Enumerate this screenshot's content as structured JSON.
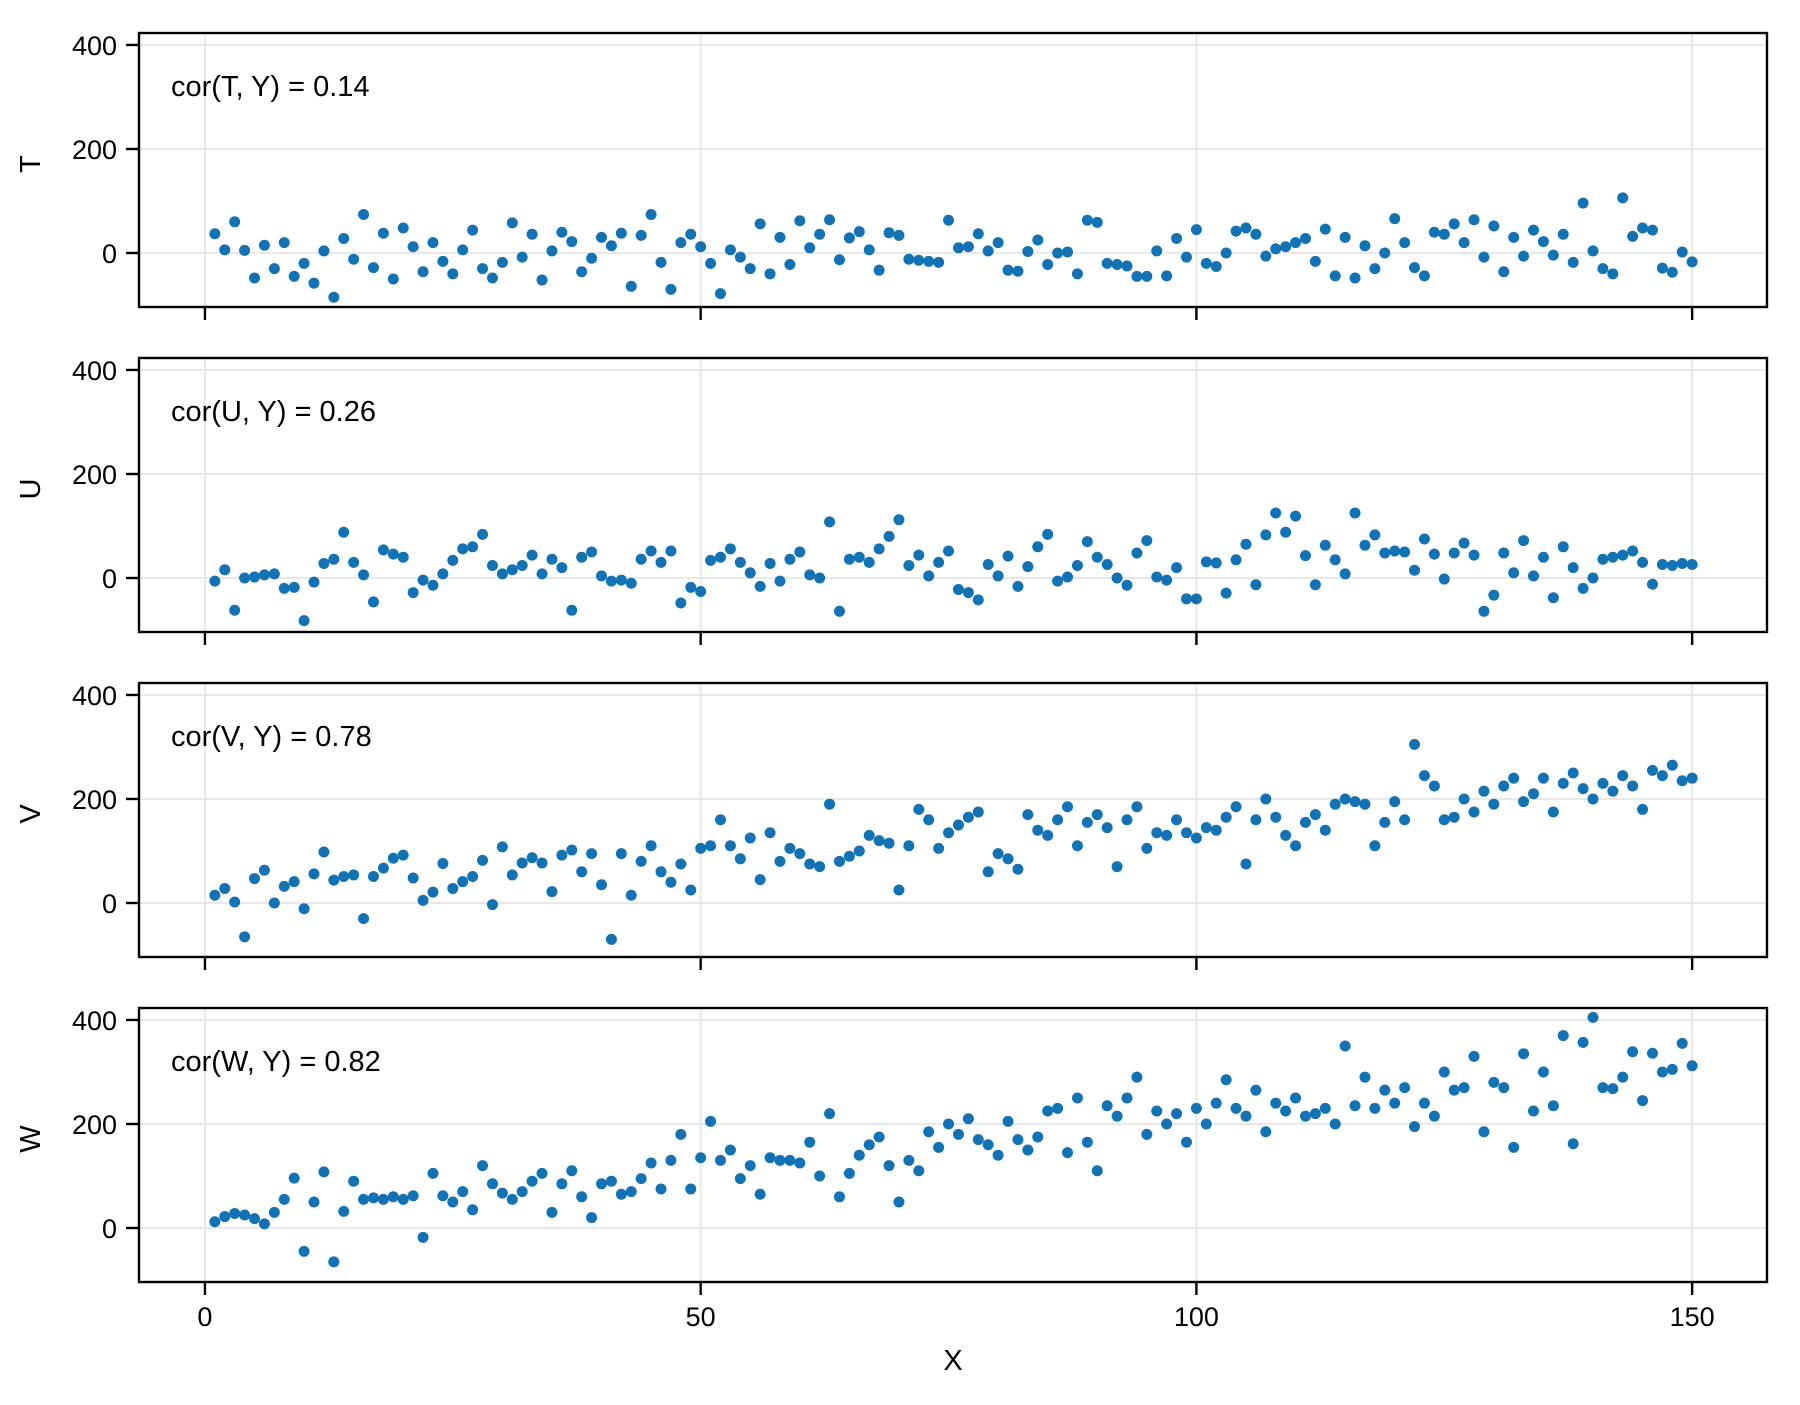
{
  "style": {
    "background": "#ffffff",
    "dot_color": "#1272b4",
    "grid_color": "#e8e8e8",
    "axis_color": "#000000",
    "dot_radius": 5.5
  },
  "chart_data": {
    "type": "scatter",
    "title": "",
    "xlabel": "X",
    "layout": "4 stacked panels, shared x-axis, grid on, no legend",
    "x_ticks": [
      0,
      50,
      100,
      150
    ],
    "y_ticks": [
      0,
      200,
      400
    ],
    "xlim": [
      -6.65,
      157.55
    ],
    "ylim": [
      -103.8,
      423
    ],
    "x": [
      1,
      2,
      3,
      4,
      5,
      6,
      7,
      8,
      9,
      10,
      11,
      12,
      13,
      14,
      15,
      16,
      17,
      18,
      19,
      20,
      21,
      22,
      23,
      24,
      25,
      26,
      27,
      28,
      29,
      30,
      31,
      32,
      33,
      34,
      35,
      36,
      37,
      38,
      39,
      40,
      41,
      42,
      43,
      44,
      45,
      46,
      47,
      48,
      49,
      50,
      51,
      52,
      53,
      54,
      55,
      56,
      57,
      58,
      59,
      60,
      61,
      62,
      63,
      64,
      65,
      66,
      67,
      68,
      69,
      70,
      71,
      72,
      73,
      74,
      75,
      76,
      77,
      78,
      79,
      80,
      81,
      82,
      83,
      84,
      85,
      86,
      87,
      88,
      89,
      90,
      91,
      92,
      93,
      94,
      95,
      96,
      97,
      98,
      99,
      100,
      101,
      102,
      103,
      104,
      105,
      106,
      107,
      108,
      109,
      110,
      111,
      112,
      113,
      114,
      115,
      116,
      117,
      118,
      119,
      120,
      121,
      122,
      123,
      124,
      125,
      126,
      127,
      128,
      129,
      130,
      131,
      132,
      133,
      134,
      135,
      136,
      137,
      138,
      139,
      140,
      141,
      142,
      143,
      144,
      145,
      146,
      147,
      148,
      149,
      150
    ],
    "panels": [
      {
        "ylabel": "T",
        "annotation": "cor(T, Y) = 0.14",
        "correlation": 0.14,
        "y": [
          37,
          6,
          60,
          5,
          -48,
          15,
          -30,
          20,
          -45,
          -20,
          -58,
          4,
          -85,
          28,
          -12,
          74,
          -28,
          38,
          -50,
          48,
          12,
          -36,
          20,
          -16,
          -40,
          6,
          44,
          -30,
          -48,
          -18,
          58,
          -8,
          36,
          -52,
          4,
          40,
          22,
          -36,
          -10,
          30,
          14,
          38,
          -64,
          34,
          74,
          -18,
          -70,
          20,
          36,
          12,
          -20,
          -78,
          6,
          -8,
          -30,
          56,
          -40,
          30,
          -22,
          62,
          10,
          36,
          64,
          -13,
          29,
          41,
          6,
          -33,
          39,
          34,
          -12,
          -14,
          -16,
          -18,
          63,
          10,
          12,
          37,
          4,
          20,
          -33,
          -35,
          3,
          25,
          -22,
          0,
          2,
          -40,
          63,
          59,
          -20,
          -22,
          -25,
          -45,
          -45,
          4,
          -44,
          28,
          -8,
          45,
          -20,
          -26,
          0,
          42,
          48,
          36,
          -6,
          8,
          12,
          20,
          28,
          -16,
          46,
          -44,
          30,
          -48,
          14,
          -30,
          0,
          66,
          20,
          -28,
          -44,
          40,
          36,
          56,
          20,
          64,
          -8,
          52,
          -36,
          30,
          -6,
          44,
          22,
          -4,
          36,
          -18,
          96,
          4,
          -30,
          -40,
          106,
          32,
          48,
          44,
          -29,
          -37,
          2,
          -17
        ]
      },
      {
        "ylabel": "U",
        "annotation": "cor(U, Y) = 0.26",
        "correlation": 0.26,
        "y": [
          -6,
          16,
          -62,
          0,
          2,
          6,
          8,
          -20,
          -18,
          -82,
          -8,
          28,
          36,
          88,
          30,
          6,
          -46,
          54,
          46,
          40,
          -28,
          -4,
          -14,
          8,
          34,
          56,
          60,
          84,
          24,
          8,
          16,
          24,
          44,
          8,
          36,
          20,
          -62,
          40,
          50,
          4,
          -6,
          -4,
          -10,
          36,
          52,
          30,
          52,
          -48,
          -18,
          -26,
          34,
          40,
          56,
          30,
          10,
          -16,
          28,
          -6,
          36,
          50,
          6,
          0,
          108,
          -64,
          36,
          40,
          30,
          56,
          80,
          112,
          24,
          44,
          4,
          30,
          52,
          -22,
          -28,
          -42,
          26,
          4,
          42,
          -16,
          22,
          60,
          84,
          -6,
          2,
          24,
          70,
          40,
          26,
          0,
          -14,
          48,
          72,
          2,
          -4,
          20,
          -40,
          -40,
          31,
          29,
          -29,
          35,
          65,
          -13,
          83,
          125,
          88,
          119,
          43,
          -13,
          63,
          35,
          8,
          125,
          63,
          83,
          48,
          52,
          50,
          15,
          75,
          46,
          -2,
          48,
          67,
          44,
          -64,
          -33,
          48,
          10,
          72,
          4,
          40,
          -38,
          60,
          20,
          -20,
          0,
          36,
          40,
          44,
          52,
          30,
          -12,
          26,
          24,
          28,
          26
        ]
      },
      {
        "ylabel": "V",
        "annotation": "cor(V, Y) = 0.78",
        "correlation": 0.78,
        "y": [
          15,
          28,
          2,
          -65,
          47,
          63,
          0,
          32,
          41,
          -11,
          56,
          98,
          44,
          51,
          54,
          -30,
          51,
          67,
          86,
          92,
          48,
          5,
          21,
          76,
          28,
          41,
          51,
          82,
          -3,
          108,
          54,
          77,
          87,
          77,
          22,
          92,
          102,
          60,
          95,
          35,
          -70,
          95,
          15,
          80,
          110,
          60,
          40,
          75,
          25,
          105,
          110,
          160,
          110,
          85,
          125,
          45,
          135,
          80,
          105,
          95,
          75,
          70,
          190,
          80,
          90,
          100,
          130,
          120,
          115,
          25,
          110,
          180,
          160,
          105,
          135,
          150,
          165,
          175,
          60,
          95,
          85,
          65,
          170,
          140,
          130,
          160,
          185,
          110,
          155,
          170,
          145,
          70,
          160,
          185,
          105,
          135,
          130,
          160,
          135,
          125,
          145,
          140,
          165,
          185,
          75,
          160,
          200,
          165,
          130,
          110,
          155,
          170,
          140,
          190,
          200,
          195,
          190,
          110,
          155,
          195,
          160,
          305,
          245,
          225,
          160,
          165,
          200,
          175,
          215,
          190,
          225,
          240,
          195,
          210,
          240,
          175,
          230,
          250,
          220,
          200,
          230,
          215,
          245,
          225,
          180,
          255,
          245,
          265,
          235,
          240
        ]
      },
      {
        "ylabel": "W",
        "annotation": "cor(W, Y) = 0.82",
        "correlation": 0.82,
        "y": [
          12,
          22,
          28,
          25,
          18,
          8,
          30,
          55,
          96,
          -45,
          50,
          108,
          -65,
          32,
          90,
          55,
          58,
          55,
          60,
          55,
          62,
          -18,
          105,
          62,
          50,
          70,
          35,
          120,
          85,
          67,
          55,
          70,
          90,
          105,
          30,
          85,
          110,
          60,
          20,
          85,
          90,
          65,
          70,
          95,
          125,
          75,
          130,
          180,
          75,
          135,
          205,
          130,
          150,
          95,
          120,
          65,
          135,
          130,
          130,
          125,
          165,
          100,
          220,
          60,
          105,
          140,
          160,
          175,
          120,
          50,
          130,
          110,
          185,
          155,
          200,
          180,
          210,
          170,
          160,
          140,
          205,
          170,
          150,
          175,
          225,
          230,
          145,
          250,
          165,
          110,
          235,
          215,
          250,
          290,
          180,
          225,
          200,
          220,
          165,
          230,
          200,
          240,
          285,
          230,
          215,
          265,
          185,
          240,
          225,
          250,
          215,
          220,
          230,
          200,
          350,
          235,
          290,
          230,
          265,
          240,
          270,
          195,
          240,
          215,
          300,
          265,
          270,
          330,
          185,
          280,
          270,
          155,
          335,
          225,
          300,
          235,
          370,
          162,
          357,
          405,
          270,
          268,
          290,
          339,
          245,
          336,
          300,
          305,
          355,
          312
        ]
      }
    ]
  }
}
